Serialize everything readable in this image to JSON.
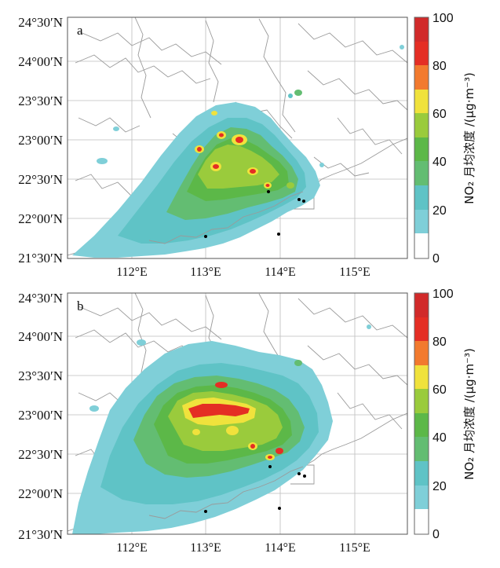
{
  "panels": [
    {
      "id": "a",
      "label": "a",
      "lat_labels": [
        "24°30′N",
        "24°00′N",
        "23°30′N",
        "23°00′N",
        "22°30′N",
        "22°00′N",
        "21°30′N"
      ],
      "lon_labels": [
        "112°E",
        "113°E",
        "114°E",
        "115°E"
      ],
      "colorbar": {
        "title": "NO₂ 月均浓度 /(μg·m⁻³)",
        "ticks": [
          "100",
          "80",
          "60",
          "40",
          "20",
          "0"
        ]
      }
    },
    {
      "id": "b",
      "label": "b",
      "lat_labels": [
        "24°30′N",
        "24°00′N",
        "23°30′N",
        "23°00′N",
        "22°30′N",
        "22°00′N",
        "21°30′N"
      ],
      "lon_labels": [
        "112°E",
        "113°E",
        "114°E",
        "115°E"
      ],
      "colorbar": {
        "title": "NO₂ 月均浓度 /(μg·m⁻³)",
        "ticks": [
          "100",
          "80",
          "60",
          "40",
          "20",
          "0"
        ]
      }
    }
  ],
  "colors": {
    "c0": "#ffffff",
    "c1": "#7fcfd8",
    "c2": "#5fc3c6",
    "c3": "#63bd72",
    "c4": "#5cb848",
    "c5": "#9acb3c",
    "c6": "#f0e23c",
    "c7": "#f27a2e",
    "c8": "#e42e24",
    "c9": "#d12a2a"
  }
}
